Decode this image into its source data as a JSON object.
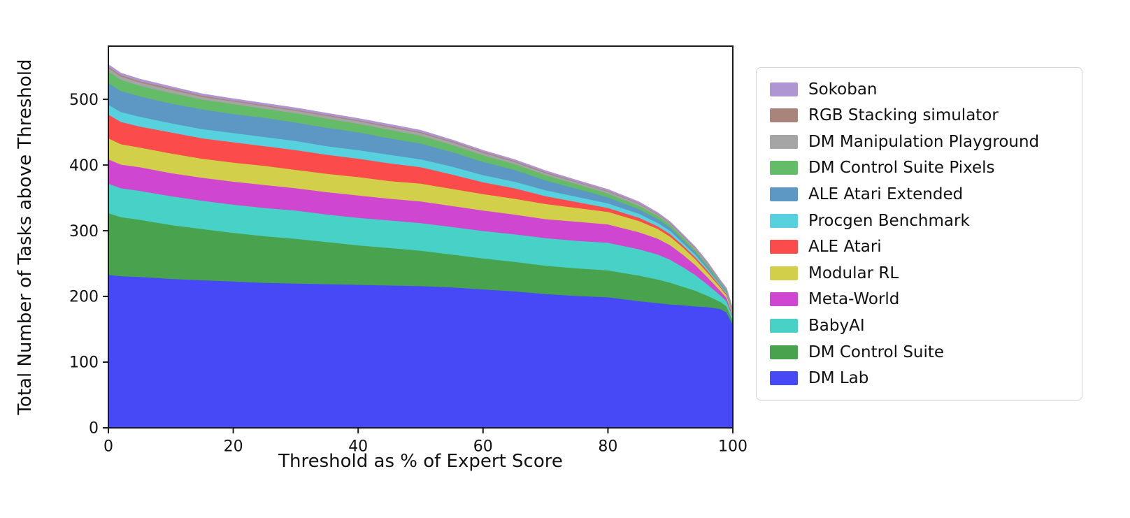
{
  "chart_data": {
    "type": "area",
    "stacked": true,
    "title": "",
    "xlabel": "Threshold as % of Expert Score",
    "ylabel": "Total Number of Tasks above Threshold",
    "xlim": [
      0,
      100
    ],
    "ylim": [
      0,
      581
    ],
    "xticks": [
      0,
      20,
      40,
      60,
      80,
      100
    ],
    "yticks": [
      0,
      100,
      200,
      300,
      400,
      500
    ],
    "grid": false,
    "legend_position": "right",
    "legend_order": "reverse-of-stack (top of stack listed first)",
    "x": [
      0,
      2,
      5,
      10,
      15,
      20,
      25,
      30,
      35,
      40,
      45,
      50,
      55,
      60,
      65,
      70,
      75,
      80,
      85,
      88,
      90,
      92,
      94,
      96,
      98,
      99,
      100
    ],
    "series": [
      {
        "name": "DM Lab",
        "color": "#4649f5",
        "values": [
          233,
          231,
          230,
          227,
          225,
          223,
          221,
          220,
          219,
          218,
          217,
          216,
          214,
          211,
          208,
          204,
          201,
          199,
          193,
          190,
          188,
          187,
          185,
          184,
          181,
          176,
          157
        ]
      },
      {
        "name": "DM Control Suite",
        "color": "#49a24e",
        "values": [
          94,
          90,
          87,
          82,
          78,
          74,
          71,
          68,
          64,
          60,
          57,
          54,
          50,
          47,
          45,
          43,
          42,
          41,
          39,
          36,
          33,
          28,
          24,
          17,
          11,
          9,
          7
        ]
      },
      {
        "name": "BabyAI",
        "color": "#48d1c7",
        "values": [
          45,
          44,
          44,
          44,
          43,
          43,
          43,
          43,
          42,
          42,
          42,
          42,
          42,
          42,
          42,
          42,
          42,
          42,
          40,
          38,
          35,
          30,
          24,
          17,
          10,
          8,
          5
        ]
      },
      {
        "name": "Meta-World",
        "color": "#cf46d0",
        "values": [
          37,
          36,
          36,
          35,
          35,
          35,
          35,
          34,
          34,
          34,
          33,
          33,
          32,
          31,
          30,
          29,
          29,
          28,
          26,
          24,
          22,
          19,
          15,
          11,
          7,
          5,
          3
        ]
      },
      {
        "name": "Modular RL",
        "color": "#d2d04b",
        "values": [
          32,
          31,
          30,
          30,
          29,
          29,
          29,
          28,
          28,
          28,
          27,
          27,
          26,
          25,
          24,
          23,
          21,
          19,
          17,
          15,
          13,
          11,
          9,
          7,
          5,
          4,
          3
        ]
      },
      {
        "name": "ALE Atari",
        "color": "#fc4b4b",
        "values": [
          36,
          34,
          32,
          32,
          31,
          31,
          30,
          30,
          29,
          28,
          27,
          25,
          22,
          18,
          16,
          12,
          9,
          6,
          5,
          4,
          4,
          3,
          3,
          3,
          2,
          2,
          1
        ]
      },
      {
        "name": "Procgen Benchmark",
        "color": "#57d1dd",
        "values": [
          15,
          15,
          15,
          14,
          14,
          14,
          14,
          14,
          13,
          13,
          13,
          12,
          12,
          11,
          10,
          9,
          8,
          7,
          6,
          5,
          5,
          4,
          4,
          3,
          2,
          2,
          1
        ]
      },
      {
        "name": "ALE Atari Extended",
        "color": "#5d97c4",
        "values": [
          33,
          32,
          31,
          30,
          30,
          29,
          29,
          28,
          28,
          27,
          25,
          24,
          22,
          20,
          18,
          15,
          12,
          9,
          7,
          6,
          5,
          4,
          4,
          3,
          2,
          2,
          1
        ]
      },
      {
        "name": "DM Control Suite Pixels",
        "color": "#64bb68",
        "values": [
          18,
          17,
          16,
          16,
          15,
          15,
          14,
          14,
          14,
          13,
          13,
          12,
          11,
          10,
          9,
          8,
          7,
          6,
          5,
          5,
          4,
          4,
          3,
          3,
          2,
          2,
          1
        ]
      },
      {
        "name": "DM Manipulation Playground",
        "color": "#a5a5a5",
        "values": [
          5,
          5,
          5,
          5,
          4,
          4,
          4,
          4,
          4,
          4,
          4,
          4,
          4,
          4,
          3,
          3,
          3,
          3,
          3,
          2,
          2,
          2,
          2,
          2,
          1,
          1,
          1
        ]
      },
      {
        "name": "RGB Stacking simulator",
        "color": "#a8847b",
        "values": [
          2,
          2,
          2,
          2,
          2,
          1.5,
          1.5,
          1.5,
          1.5,
          1.5,
          1.5,
          1.5,
          1.5,
          1.5,
          1.5,
          1.5,
          1,
          1,
          1,
          1,
          1,
          1,
          1,
          1,
          1,
          0.5,
          0.5
        ]
      },
      {
        "name": "Sokoban",
        "color": "#b095d3",
        "values": [
          3,
          3,
          3,
          2.5,
          2.5,
          2.5,
          2.5,
          2.5,
          2.5,
          2.5,
          2.5,
          2.5,
          2,
          2,
          2,
          2,
          2,
          2,
          2,
          1.5,
          1.5,
          1.5,
          1.5,
          1,
          1,
          1,
          0.5
        ]
      }
    ]
  },
  "axes": {
    "x_tick_labels": [
      "0",
      "20",
      "40",
      "60",
      "80",
      "100"
    ],
    "y_tick_labels": [
      "0",
      "100",
      "200",
      "300",
      "400",
      "500"
    ]
  }
}
